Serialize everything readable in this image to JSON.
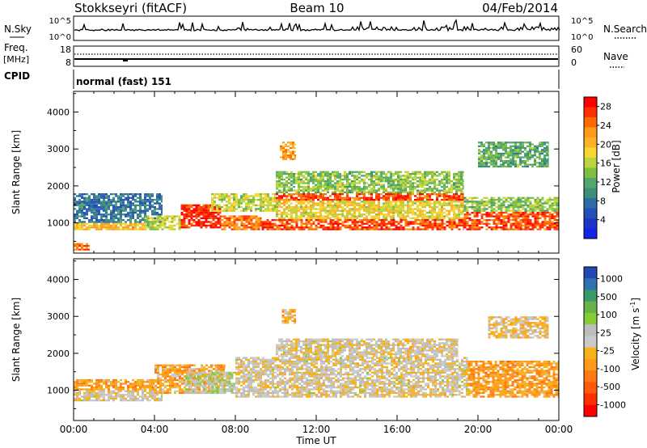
{
  "header": {
    "station": "Stokkseyri (fitACF)",
    "beam": "Beam 10",
    "date": "04/Feb/2014"
  },
  "strips": {
    "nsky": {
      "left_label": "N.Sky",
      "left_ticks": [
        "10^5",
        "10^0"
      ],
      "right_label": "N.Search",
      "right_ticks": [
        "10^5",
        "10^0"
      ]
    },
    "freq": {
      "left_label_1": "Freq.",
      "left_label_2": "[MHz]",
      "left_ticks": [
        "18",
        "8"
      ],
      "right_label": "Nave",
      "right_ticks": [
        "60",
        "0"
      ]
    },
    "cpid": {
      "left_label": "CPID",
      "mode_text": "normal (fast) 151"
    }
  },
  "panels": {
    "power": {
      "ylabel": "Slant Range [km]"
    },
    "velocity": {
      "ylabel": "Slant Range [km]"
    }
  },
  "colorbars": {
    "power": {
      "label": "Power [dB]",
      "ticks": [
        "28",
        "24",
        "20",
        "16",
        "12",
        "8",
        "4"
      ],
      "colors": [
        "#ff0000",
        "#ff3000",
        "#ff6a00",
        "#ff9a1c",
        "#ffb02a",
        "#f7d632",
        "#b9d43c",
        "#7fbf3f",
        "#52a86c",
        "#3c8f78",
        "#2f6da4",
        "#254fb8",
        "#1c37c8",
        "#1722e8"
      ]
    },
    "velocity": {
      "label": "Velocity [m s^-1]",
      "ticks": [
        "1000",
        "500",
        "100",
        "25",
        "-25",
        "-100",
        "-500",
        "-1000"
      ],
      "colors": [
        "#2447b5",
        "#2e72b0",
        "#3a9a6a",
        "#67b34a",
        "#86cc33",
        "#bdbdbd",
        "#cacaca",
        "#f6b21a",
        "#ff9b1a",
        "#ff7a10",
        "#ff5a0a",
        "#ff3000",
        "#ff0000"
      ]
    }
  },
  "xaxis": {
    "title": "Time UT",
    "ticks": [
      "00:00",
      "04:00",
      "08:00",
      "12:00",
      "16:00",
      "20:00",
      "00:00"
    ]
  },
  "chart_data": [
    {
      "type": "heatmap",
      "title": "Stokkseyri (fitACF) Beam 10 04/Feb/2014",
      "quantity": "Power",
      "unit": "dB",
      "xlabel": "Time UT",
      "ylabel": "Slant Range [km]",
      "xlim_hours": [
        0,
        24
      ],
      "ylim_km": [
        180,
        4560
      ],
      "clim": [
        0,
        30
      ],
      "grid": false,
      "colorbar_ticks": [
        28,
        24,
        20,
        16,
        12,
        8,
        4
      ],
      "echo_bands": [
        {
          "t_start": 0.0,
          "t_end": 0.8,
          "r_low": 250,
          "r_high": 450,
          "value": 24
        },
        {
          "t_start": 0.0,
          "t_end": 3.6,
          "r_low": 800,
          "r_high": 1000,
          "value": 20
        },
        {
          "t_start": 0.0,
          "t_end": 4.4,
          "r_low": 1000,
          "r_high": 1800,
          "value": 8
        },
        {
          "t_start": 3.5,
          "t_end": 5.3,
          "r_low": 800,
          "r_high": 1200,
          "value": 16
        },
        {
          "t_start": 5.3,
          "t_end": 7.3,
          "r_low": 850,
          "r_high": 1500,
          "value": 28
        },
        {
          "t_start": 7.3,
          "t_end": 9.3,
          "r_low": 800,
          "r_high": 1200,
          "value": 24
        },
        {
          "t_start": 6.8,
          "t_end": 10.0,
          "r_low": 1300,
          "r_high": 1800,
          "value": 16
        },
        {
          "t_start": 9.3,
          "t_end": 19.3,
          "r_low": 800,
          "r_high": 1100,
          "value": 26
        },
        {
          "t_start": 10.0,
          "t_end": 19.3,
          "r_low": 1100,
          "r_high": 1600,
          "value": 18
        },
        {
          "t_start": 10.0,
          "t_end": 19.3,
          "r_low": 1600,
          "r_high": 1800,
          "value": 26
        },
        {
          "t_start": 10.0,
          "t_end": 19.3,
          "r_low": 1800,
          "r_high": 2400,
          "value": 14
        },
        {
          "t_start": 10.2,
          "t_end": 11.0,
          "r_low": 2700,
          "r_high": 3200,
          "value": 22
        },
        {
          "t_start": 19.3,
          "t_end": 24.0,
          "r_low": 800,
          "r_high": 1300,
          "value": 26
        },
        {
          "t_start": 19.3,
          "t_end": 24.0,
          "r_low": 1300,
          "r_high": 1700,
          "value": 14
        },
        {
          "t_start": 20.0,
          "t_end": 23.5,
          "r_low": 2500,
          "r_high": 3200,
          "value": 12
        }
      ]
    },
    {
      "type": "heatmap",
      "title": "Stokkseyri (fitACF) Beam 10 04/Feb/2014",
      "quantity": "Velocity",
      "unit": "m s^-1",
      "xlabel": "Time UT",
      "ylabel": "Slant Range [km]",
      "xlim_hours": [
        0,
        24
      ],
      "ylim_km": [
        180,
        4560
      ],
      "clim": [
        -1000,
        1000
      ],
      "grid": false,
      "colorbar_ticks": [
        1000,
        500,
        100,
        25,
        -25,
        -100,
        -500,
        -1000
      ],
      "echo_bands": [
        {
          "t_start": 0.0,
          "t_end": 4.4,
          "r_low": 700,
          "r_high": 1000,
          "value": 0
        },
        {
          "t_start": 0.0,
          "t_end": 4.0,
          "r_low": 1000,
          "r_high": 1300,
          "value": -300
        },
        {
          "t_start": 4.0,
          "t_end": 7.5,
          "r_low": 900,
          "r_high": 1700,
          "value": -250
        },
        {
          "t_start": 5.5,
          "t_end": 8.0,
          "r_low": 900,
          "r_high": 1500,
          "value": 150
        },
        {
          "t_start": 8.0,
          "t_end": 19.5,
          "r_low": 800,
          "r_high": 1900,
          "value": 0
        },
        {
          "t_start": 10.0,
          "t_end": 19.0,
          "r_low": 1900,
          "r_high": 2400,
          "value": 0
        },
        {
          "t_start": 10.3,
          "t_end": 11.0,
          "r_low": 2800,
          "r_high": 3200,
          "value": -200
        },
        {
          "t_start": 19.5,
          "t_end": 24.0,
          "r_low": 800,
          "r_high": 1800,
          "value": -300
        },
        {
          "t_start": 20.5,
          "t_end": 23.5,
          "r_low": 2400,
          "r_high": 3000,
          "value": -100
        }
      ]
    }
  ]
}
